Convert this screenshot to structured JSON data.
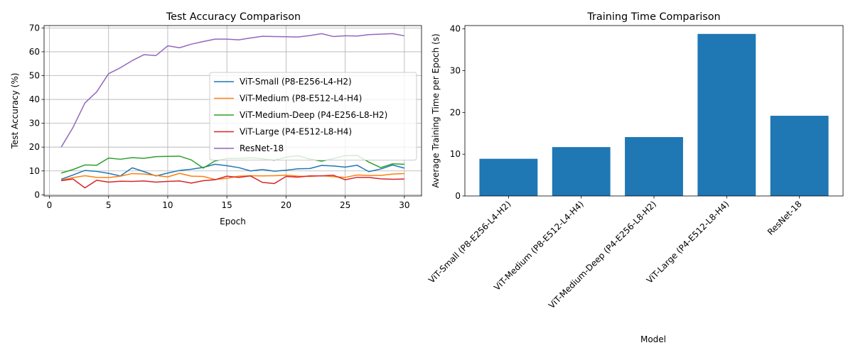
{
  "chart_data": [
    {
      "type": "line",
      "title": "Test Accuracy Comparison",
      "xlabel": "Epoch",
      "ylabel": "Test Accuracy (%)",
      "xlim": [
        -0.45,
        31.45
      ],
      "ylim": [
        -0.5,
        71
      ],
      "xticks": [
        0,
        5,
        10,
        15,
        20,
        25,
        30
      ],
      "yticks": [
        0,
        10,
        20,
        30,
        40,
        50,
        60,
        70
      ],
      "grid": true,
      "legend": "center-right",
      "x": [
        1,
        2,
        3,
        4,
        5,
        6,
        7,
        8,
        9,
        10,
        11,
        12,
        13,
        14,
        15,
        16,
        17,
        18,
        19,
        20,
        21,
        22,
        23,
        24,
        25,
        26,
        27,
        28,
        29,
        30
      ],
      "series": [
        {
          "name": "ViT-Small (P8-E256-L4-H2)",
          "color": "#1f77b4",
          "values": [
            6.5,
            8.3,
            10.2,
            9.8,
            9.0,
            7.9,
            11.3,
            9.7,
            7.9,
            9.1,
            10.2,
            10.7,
            11.5,
            12.8,
            12.2,
            11.4,
            10.0,
            10.6,
            9.9,
            10.3,
            10.9,
            11.0,
            12.3,
            12.1,
            11.6,
            12.4,
            9.7,
            10.8,
            12.5,
            11.2
          ]
        },
        {
          "name": "ViT-Medium (P8-E512-L4-H4)",
          "color": "#ff7f0e",
          "values": [
            6.1,
            7.2,
            8.0,
            7.3,
            7.2,
            7.8,
            8.9,
            8.7,
            8.1,
            7.5,
            9.0,
            7.8,
            7.7,
            6.4,
            6.9,
            7.8,
            8.0,
            7.9,
            8.0,
            8.2,
            7.8,
            7.7,
            8.0,
            7.6,
            7.3,
            8.3,
            8.1,
            8.1,
            8.7,
            8.9
          ]
        },
        {
          "name": "ViT-Medium-Deep (P4-E256-L8-H2)",
          "color": "#2ca02c",
          "values": [
            9.1,
            10.6,
            12.5,
            12.4,
            15.4,
            14.9,
            15.6,
            15.3,
            16.0,
            16.1,
            16.2,
            14.6,
            11.2,
            14.2,
            15.2,
            15.3,
            15.5,
            15.1,
            14.5,
            15.8,
            16.4,
            15.0,
            14.1,
            15.2,
            16.4,
            16.5,
            13.7,
            11.4,
            13.0,
            12.8
          ]
        },
        {
          "name": "ViT-Large (P4-E512-L8-H4)",
          "color": "#d62728",
          "values": [
            5.9,
            6.6,
            2.9,
            6.1,
            5.3,
            5.7,
            5.6,
            5.8,
            5.3,
            5.6,
            5.8,
            4.9,
            5.9,
            6.3,
            7.8,
            7.3,
            7.9,
            5.2,
            4.7,
            7.7,
            7.4,
            7.9,
            7.9,
            8.2,
            6.3,
            7.3,
            7.3,
            6.7,
            6.5,
            6.6
          ]
        },
        {
          "name": "ResNet-18",
          "color": "#9467bd",
          "values": [
            20.0,
            28.3,
            38.5,
            43.2,
            50.8,
            53.3,
            56.3,
            58.8,
            58.4,
            62.5,
            61.7,
            63.2,
            64.3,
            65.3,
            65.3,
            65.0,
            65.8,
            66.5,
            66.4,
            66.3,
            66.2,
            66.8,
            67.6,
            66.4,
            66.7,
            66.6,
            67.2,
            67.4,
            67.6,
            66.7
          ]
        }
      ]
    },
    {
      "type": "bar",
      "title": "Training Time Comparison",
      "xlabel": "Model",
      "ylabel": "Average Training Time per Epoch (s)",
      "ylim": [
        0,
        40.8
      ],
      "yticks": [
        0,
        10,
        20,
        30,
        40
      ],
      "grid": false,
      "color": "#1f77b4",
      "categories": [
        "ViT-Small (P8-E256-L4-H2)",
        "ViT-Medium (P8-E512-L4-H4)",
        "ViT-Medium-Deep (P4-E256-L8-H2)",
        "ViT-Large (P4-E512-L8-H4)",
        "ResNet-18"
      ],
      "values": [
        8.9,
        11.7,
        14.1,
        38.8,
        19.2
      ]
    }
  ]
}
